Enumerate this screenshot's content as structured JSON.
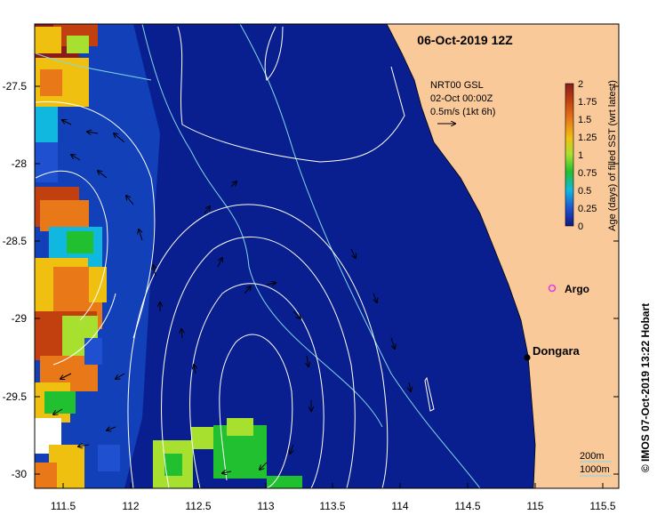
{
  "title": "06-Oct-2019 12Z",
  "current_info": {
    "product": "NRT00 GSL",
    "date": "02-Oct 00:00Z",
    "scale": "0.5m/s (1kt 6h)"
  },
  "colorbar": {
    "label": "Age (days) of filled SST (wrt latest)",
    "ticks": [
      "2",
      "1.75",
      "1.5",
      "1.25",
      "1",
      "0.75",
      "0.5",
      "0.25",
      "0"
    ],
    "colors": [
      "#8b1a1a",
      "#c24010",
      "#e87818",
      "#f0c010",
      "#a8e030",
      "#20c030",
      "#10b8e0",
      "#1e50d0",
      "#101880"
    ]
  },
  "x_ticks": [
    "111.5",
    "112",
    "112.5",
    "113",
    "113.5",
    "114",
    "114.5",
    "115",
    "115.5"
  ],
  "y_ticks": [
    "-27.5",
    "-28",
    "-28.5",
    "-29",
    "-29.5",
    "-30"
  ],
  "labels": {
    "argo": "Argo",
    "town": "Dongara"
  },
  "depth_legend": {
    "d200": "200m",
    "d1000": "1000m"
  },
  "credit": "© IMOS 07-Oct-2019 13:22 Hobart",
  "colors": {
    "ocean": "#0a1f8f",
    "land": "#f9c99a",
    "contours": "#ffffff",
    "bathymetry": "#7fd8e8",
    "argo_marker": "#e040e0"
  }
}
